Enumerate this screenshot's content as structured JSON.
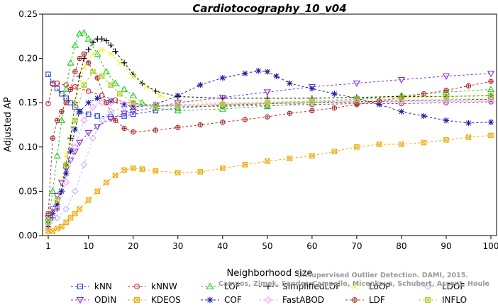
{
  "chart_data": {
    "type": "line",
    "title": "Cardiotocography_10_v04",
    "xlabel": "Neighborhood size",
    "ylabel": "Adjusted AP",
    "xlim": [
      1,
      100
    ],
    "ylim": [
      0,
      0.25
    ],
    "xticks": [
      "1",
      "10",
      "20",
      "30",
      "40",
      "50",
      "60",
      "70",
      "80",
      "90",
      "100"
    ],
    "yticks": [
      "0.00",
      "0.05",
      "0.10",
      "0.15",
      "0.20",
      "0.25"
    ],
    "grid": false,
    "legend_position": "bottom",
    "series": [
      {
        "name": "kNN",
        "color": "#1f3fd6",
        "marker": "square",
        "dash": "3,3",
        "points": [
          [
            1,
            0.182
          ],
          [
            2,
            0.172
          ],
          [
            3,
            0.166
          ],
          [
            4,
            0.16
          ],
          [
            5,
            0.155
          ],
          [
            6,
            0.15
          ],
          [
            7,
            0.145
          ],
          [
            8,
            0.14
          ],
          [
            10,
            0.137
          ],
          [
            12,
            0.135
          ],
          [
            15,
            0.134
          ],
          [
            18,
            0.135
          ],
          [
            20,
            0.137
          ],
          [
            25,
            0.141
          ],
          [
            30,
            0.144
          ],
          [
            40,
            0.147
          ],
          [
            50,
            0.149
          ],
          [
            60,
            0.15
          ],
          [
            70,
            0.151
          ],
          [
            80,
            0.152
          ],
          [
            90,
            0.153
          ],
          [
            100,
            0.154
          ]
        ]
      },
      {
        "name": "kNNW",
        "color": "#cc2a2a",
        "marker": "circle",
        "dash": "3,3",
        "points": [
          [
            1,
            0.149
          ],
          [
            2,
            0.171
          ],
          [
            3,
            0.172
          ],
          [
            5,
            0.17
          ],
          [
            7,
            0.168
          ],
          [
            10,
            0.163
          ],
          [
            13,
            0.158
          ],
          [
            16,
            0.153
          ],
          [
            20,
            0.149
          ],
          [
            25,
            0.147
          ],
          [
            30,
            0.146
          ],
          [
            40,
            0.146
          ],
          [
            50,
            0.147
          ],
          [
            60,
            0.148
          ],
          [
            70,
            0.149
          ],
          [
            80,
            0.149
          ],
          [
            90,
            0.15
          ],
          [
            100,
            0.151
          ]
        ]
      },
      {
        "name": "LOF",
        "color": "#22cc22",
        "marker": "triangle",
        "dash": "3,3",
        "points": [
          [
            1,
            0.02
          ],
          [
            2,
            0.05
          ],
          [
            3,
            0.09
          ],
          [
            4,
            0.13
          ],
          [
            5,
            0.165
          ],
          [
            6,
            0.195
          ],
          [
            7,
            0.215
          ],
          [
            8,
            0.228
          ],
          [
            9,
            0.229
          ],
          [
            10,
            0.222
          ],
          [
            12,
            0.205
          ],
          [
            14,
            0.185
          ],
          [
            16,
            0.172
          ],
          [
            18,
            0.165
          ],
          [
            20,
            0.158
          ],
          [
            22,
            0.15
          ],
          [
            25,
            0.144
          ],
          [
            30,
            0.141
          ],
          [
            40,
            0.143
          ],
          [
            50,
            0.146
          ],
          [
            60,
            0.15
          ],
          [
            70,
            0.154
          ],
          [
            80,
            0.158
          ],
          [
            90,
            0.162
          ],
          [
            100,
            0.165
          ]
        ]
      },
      {
        "name": "SimplifiedLOF",
        "color": "#000000",
        "marker": "plus",
        "dash": "3,3",
        "points": [
          [
            1,
            0.01
          ],
          [
            2,
            0.02
          ],
          [
            3,
            0.03
          ],
          [
            4,
            0.05
          ],
          [
            5,
            0.08
          ],
          [
            6,
            0.11
          ],
          [
            7,
            0.15
          ],
          [
            8,
            0.18
          ],
          [
            9,
            0.2
          ],
          [
            10,
            0.21
          ],
          [
            11,
            0.218
          ],
          [
            12,
            0.222
          ],
          [
            13,
            0.222
          ],
          [
            14,
            0.22
          ],
          [
            15,
            0.215
          ],
          [
            16,
            0.208
          ],
          [
            18,
            0.195
          ],
          [
            20,
            0.182
          ],
          [
            22,
            0.172
          ],
          [
            25,
            0.163
          ],
          [
            30,
            0.157
          ],
          [
            40,
            0.155
          ],
          [
            50,
            0.155
          ],
          [
            60,
            0.155
          ],
          [
            70,
            0.156
          ],
          [
            80,
            0.157
          ],
          [
            90,
            0.157
          ],
          [
            100,
            0.158
          ]
        ]
      },
      {
        "name": "LoOP",
        "color": "#f2f20a",
        "marker": "x",
        "dash": "3,3",
        "points": [
          [
            1,
            0.015
          ],
          [
            3,
            0.04
          ],
          [
            5,
            0.09
          ],
          [
            7,
            0.15
          ],
          [
            9,
            0.19
          ],
          [
            11,
            0.205
          ],
          [
            13,
            0.21
          ],
          [
            15,
            0.205
          ],
          [
            17,
            0.195
          ],
          [
            20,
            0.18
          ],
          [
            23,
            0.168
          ],
          [
            26,
            0.158
          ],
          [
            30,
            0.152
          ],
          [
            40,
            0.15
          ],
          [
            50,
            0.151
          ],
          [
            60,
            0.152
          ],
          [
            70,
            0.153
          ],
          [
            80,
            0.154
          ],
          [
            90,
            0.154
          ],
          [
            100,
            0.155
          ]
        ]
      },
      {
        "name": "LDOF",
        "color": "#b8b8f0",
        "marker": "diamond",
        "dash": "3,3",
        "points": [
          [
            1,
            0.01
          ],
          [
            3,
            0.02
          ],
          [
            5,
            0.03
          ],
          [
            7,
            0.05
          ],
          [
            9,
            0.08
          ],
          [
            11,
            0.11
          ],
          [
            13,
            0.13
          ],
          [
            15,
            0.14
          ],
          [
            18,
            0.145
          ],
          [
            20,
            0.146
          ],
          [
            25,
            0.146
          ],
          [
            30,
            0.147
          ],
          [
            40,
            0.148
          ],
          [
            50,
            0.149
          ],
          [
            60,
            0.15
          ],
          [
            70,
            0.15
          ],
          [
            80,
            0.151
          ],
          [
            90,
            0.151
          ],
          [
            100,
            0.152
          ]
        ]
      },
      {
        "name": "ODIN",
        "color": "#8a2be2",
        "marker": "triangle-down",
        "dash": "3,3",
        "points": [
          [
            1,
            0.02
          ],
          [
            2,
            0.03
          ],
          [
            3,
            0.045
          ],
          [
            4,
            0.06
          ],
          [
            5,
            0.075
          ],
          [
            6,
            0.085
          ],
          [
            7,
            0.095
          ],
          [
            8,
            0.105
          ],
          [
            10,
            0.116
          ],
          [
            12,
            0.123
          ],
          [
            15,
            0.132
          ],
          [
            18,
            0.138
          ],
          [
            20,
            0.14
          ],
          [
            25,
            0.145
          ],
          [
            30,
            0.15
          ],
          [
            40,
            0.156
          ],
          [
            50,
            0.162
          ],
          [
            60,
            0.168
          ],
          [
            70,
            0.172
          ],
          [
            80,
            0.176
          ],
          [
            90,
            0.18
          ],
          [
            100,
            0.183
          ]
        ]
      },
      {
        "name": "KDEOS",
        "color": "#f0a800",
        "marker": "square-x",
        "dash": "3,3",
        "points": [
          [
            1,
            0.005
          ],
          [
            2,
            0.005
          ],
          [
            3,
            0.008
          ],
          [
            4,
            0.01
          ],
          [
            5,
            0.015
          ],
          [
            6,
            0.02
          ],
          [
            7,
            0.025
          ],
          [
            8,
            0.03
          ],
          [
            10,
            0.04
          ],
          [
            12,
            0.05
          ],
          [
            14,
            0.06
          ],
          [
            16,
            0.068
          ],
          [
            18,
            0.074
          ],
          [
            20,
            0.076
          ],
          [
            22,
            0.075
          ],
          [
            25,
            0.073
          ],
          [
            30,
            0.071
          ],
          [
            35,
            0.072
          ],
          [
            40,
            0.076
          ],
          [
            45,
            0.08
          ],
          [
            50,
            0.084
          ],
          [
            55,
            0.087
          ],
          [
            60,
            0.09
          ],
          [
            65,
            0.095
          ],
          [
            70,
            0.1
          ],
          [
            75,
            0.103
          ],
          [
            80,
            0.103
          ],
          [
            85,
            0.105
          ],
          [
            90,
            0.108
          ],
          [
            95,
            0.111
          ],
          [
            100,
            0.113
          ]
        ]
      },
      {
        "name": "COF",
        "color": "#1a1aa0",
        "marker": "star",
        "dash": "3,3",
        "points": [
          [
            1,
            0.015
          ],
          [
            2,
            0.025
          ],
          [
            3,
            0.035
          ],
          [
            4,
            0.05
          ],
          [
            5,
            0.07
          ],
          [
            6,
            0.095
          ],
          [
            7,
            0.12
          ],
          [
            8,
            0.14
          ],
          [
            10,
            0.15
          ],
          [
            12,
            0.155
          ],
          [
            15,
            0.152
          ],
          [
            18,
            0.148
          ],
          [
            20,
            0.145
          ],
          [
            25,
            0.148
          ],
          [
            30,
            0.158
          ],
          [
            35,
            0.17
          ],
          [
            40,
            0.178
          ],
          [
            45,
            0.183
          ],
          [
            48,
            0.186
          ],
          [
            50,
            0.185
          ],
          [
            52,
            0.18
          ],
          [
            55,
            0.172
          ],
          [
            60,
            0.166
          ],
          [
            65,
            0.16
          ],
          [
            70,
            0.155
          ],
          [
            75,
            0.148
          ],
          [
            80,
            0.14
          ],
          [
            85,
            0.135
          ],
          [
            90,
            0.13
          ],
          [
            95,
            0.127
          ],
          [
            100,
            0.128
          ]
        ]
      },
      {
        "name": "FastABOD",
        "color": "#f0a0f0",
        "marker": "diamond",
        "dash": "3,3",
        "points": [
          [
            1,
            0.01
          ],
          [
            3,
            0.03
          ],
          [
            5,
            0.06
          ],
          [
            7,
            0.1
          ],
          [
            9,
            0.13
          ],
          [
            11,
            0.145
          ],
          [
            13,
            0.15
          ],
          [
            15,
            0.15
          ],
          [
            18,
            0.148
          ],
          [
            20,
            0.147
          ],
          [
            25,
            0.147
          ],
          [
            30,
            0.148
          ],
          [
            40,
            0.149
          ],
          [
            50,
            0.15
          ],
          [
            60,
            0.151
          ],
          [
            70,
            0.152
          ],
          [
            80,
            0.152
          ],
          [
            90,
            0.153
          ],
          [
            100,
            0.153
          ]
        ]
      },
      {
        "name": "LDF",
        "color": "#b03030",
        "marker": "circle-plus",
        "dash": "3,3",
        "points": [
          [
            1,
            0.025
          ],
          [
            2,
            0.11
          ],
          [
            3,
            0.13
          ],
          [
            4,
            0.14
          ],
          [
            5,
            0.15
          ],
          [
            6,
            0.165
          ],
          [
            7,
            0.185
          ],
          [
            8,
            0.2
          ],
          [
            9,
            0.205
          ],
          [
            10,
            0.195
          ],
          [
            12,
            0.178
          ],
          [
            14,
            0.15
          ],
          [
            16,
            0.13
          ],
          [
            18,
            0.121
          ],
          [
            20,
            0.117
          ],
          [
            25,
            0.119
          ],
          [
            30,
            0.122
          ],
          [
            35,
            0.125
          ],
          [
            40,
            0.128
          ],
          [
            45,
            0.131
          ],
          [
            50,
            0.134
          ],
          [
            55,
            0.138
          ],
          [
            60,
            0.141
          ],
          [
            65,
            0.144
          ],
          [
            70,
            0.148
          ],
          [
            75,
            0.152
          ],
          [
            80,
            0.156
          ],
          [
            85,
            0.16
          ],
          [
            90,
            0.164
          ],
          [
            95,
            0.169
          ],
          [
            100,
            0.174
          ]
        ]
      },
      {
        "name": "INFLO",
        "color": "#a6d020",
        "marker": "square-x",
        "dash": "3,3",
        "points": [
          [
            1,
            0.015
          ],
          [
            3,
            0.04
          ],
          [
            5,
            0.08
          ],
          [
            7,
            0.13
          ],
          [
            9,
            0.17
          ],
          [
            11,
            0.185
          ],
          [
            13,
            0.18
          ],
          [
            15,
            0.17
          ],
          [
            17,
            0.16
          ],
          [
            20,
            0.15
          ],
          [
            25,
            0.146
          ],
          [
            30,
            0.146
          ],
          [
            40,
            0.148
          ],
          [
            50,
            0.15
          ],
          [
            60,
            0.152
          ],
          [
            70,
            0.154
          ],
          [
            80,
            0.156
          ],
          [
            90,
            0.157
          ],
          [
            100,
            0.158
          ]
        ]
      }
    ]
  },
  "watermark": {
    "line1": "Unsupervised Outlier Detection. DAMI, 2015.",
    "line2": "Campos, Zimek, Sander, Campello, Micenkova, Schubert, Assent, Houle"
  }
}
